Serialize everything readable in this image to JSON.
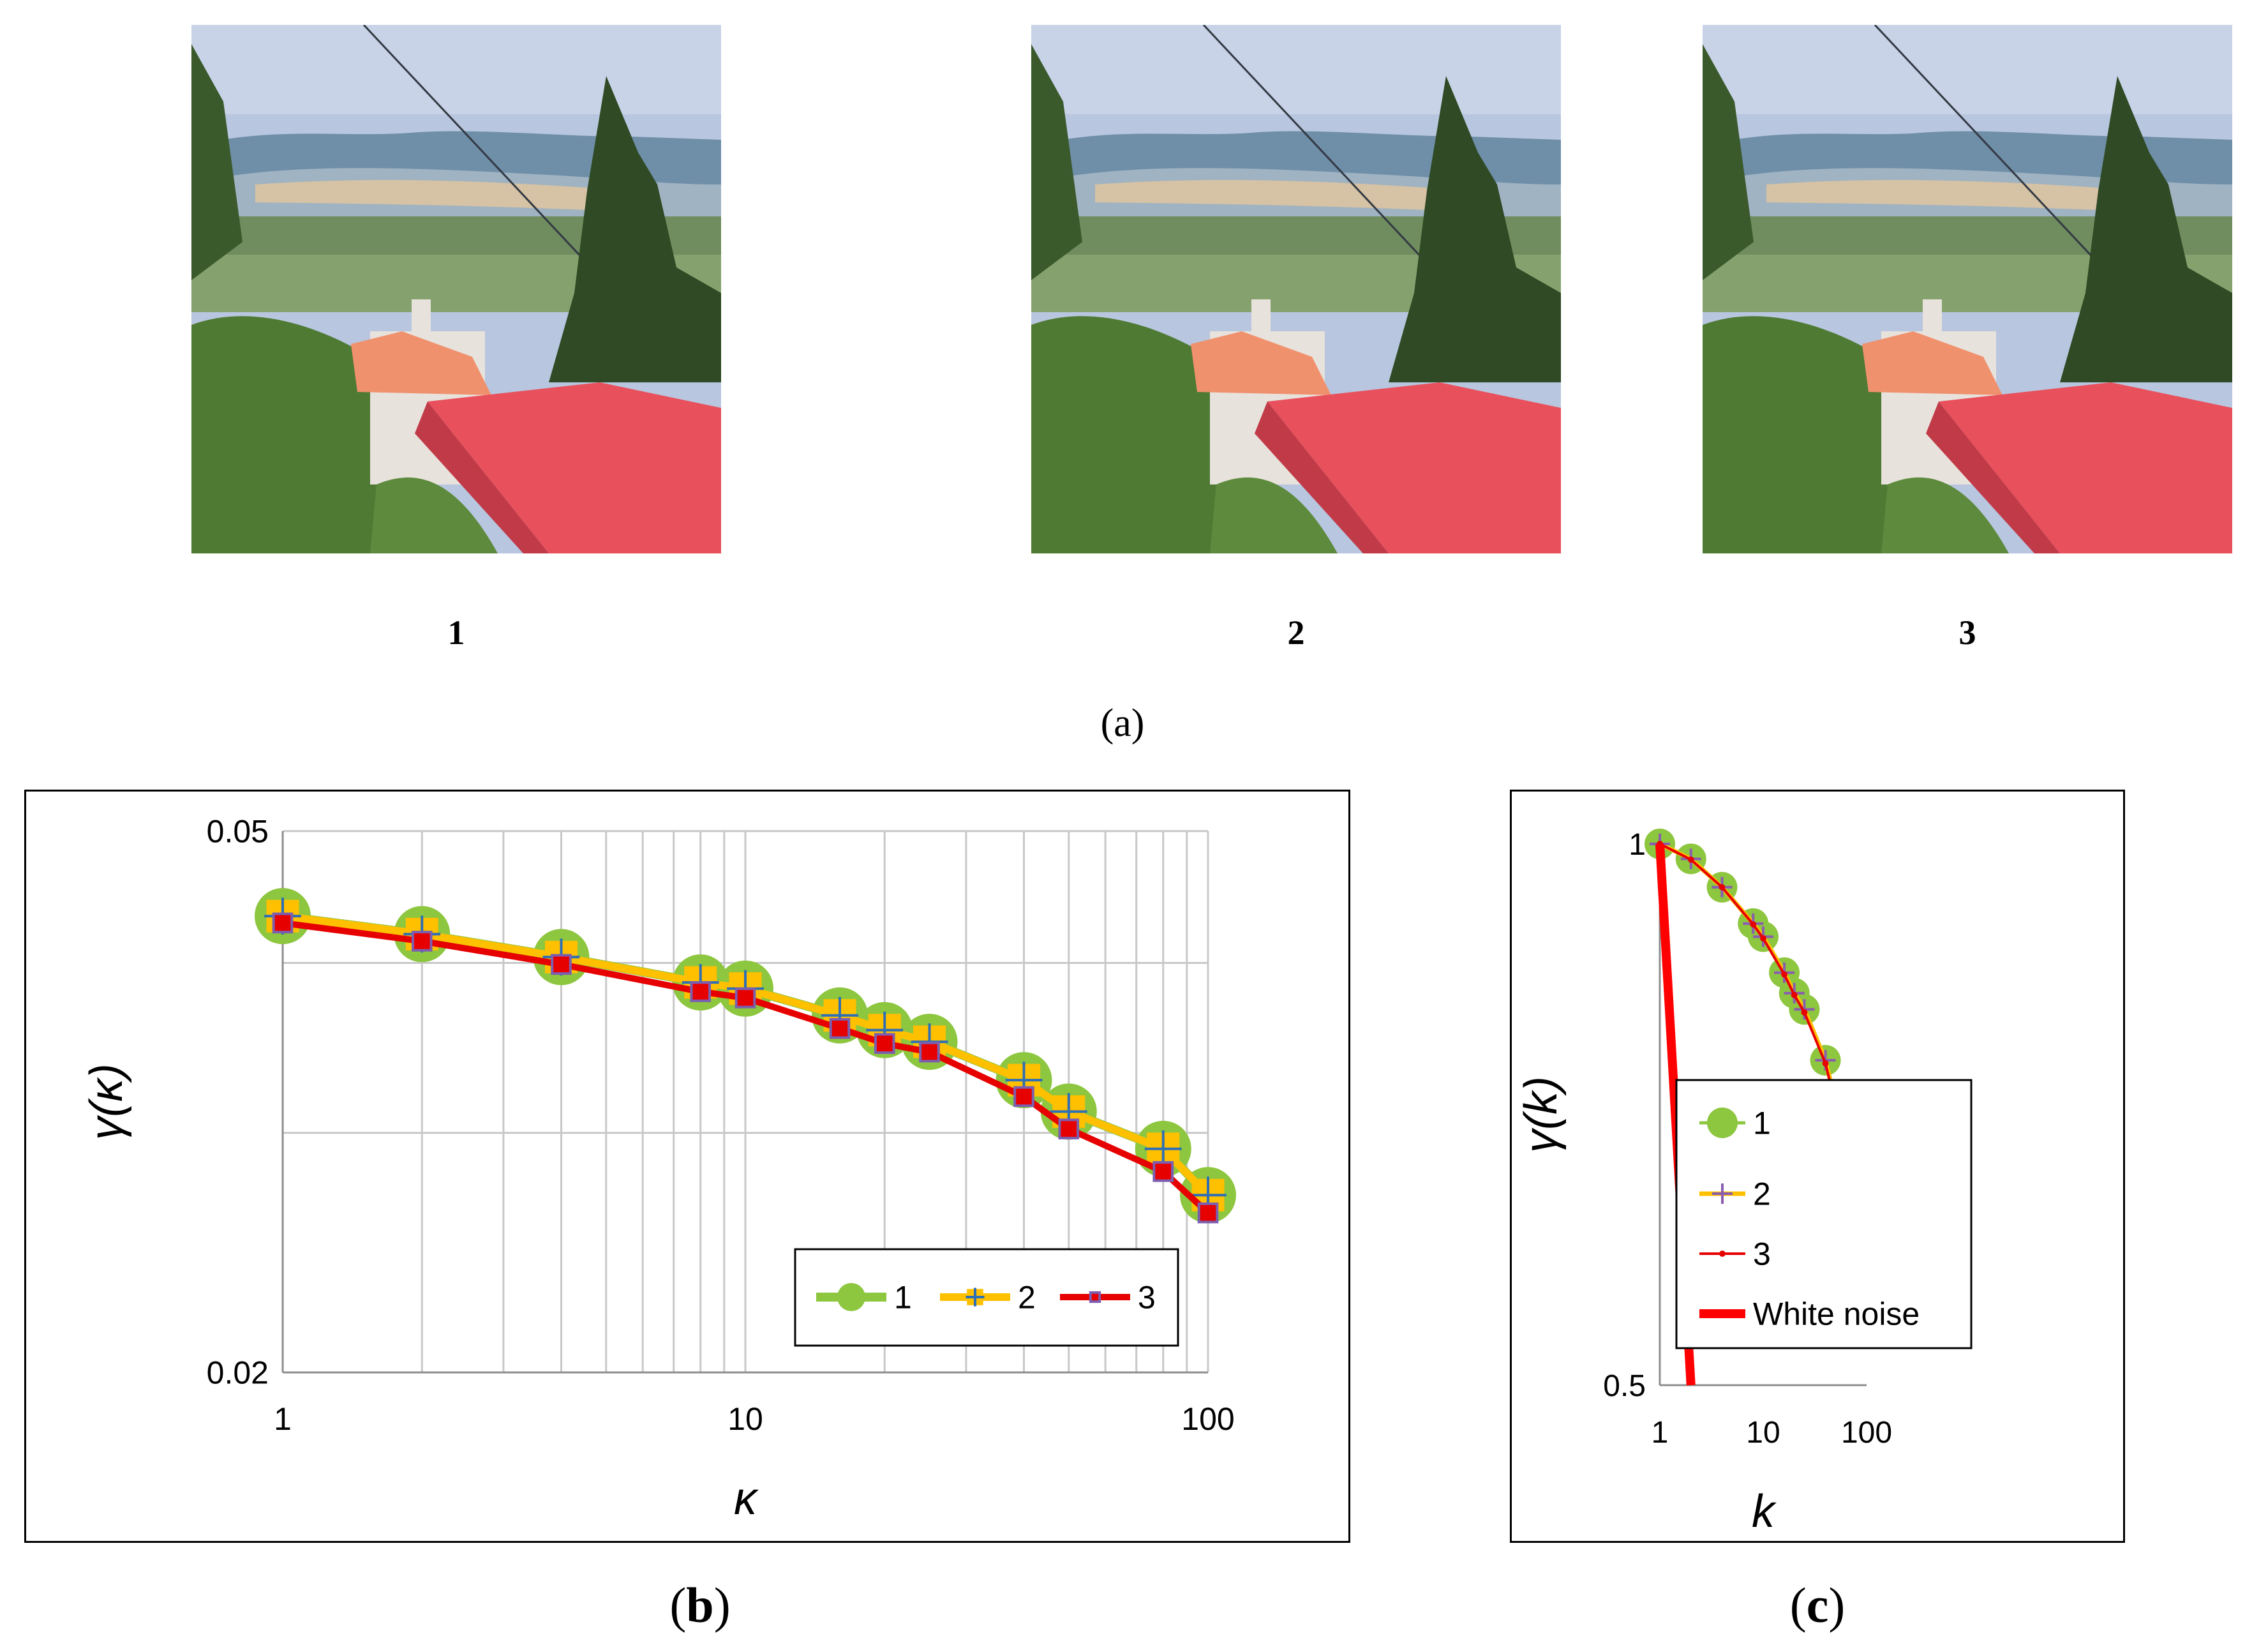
{
  "photos": [
    {
      "label": "1"
    },
    {
      "label": "2"
    },
    {
      "label": "3"
    }
  ],
  "captions": {
    "a": "a",
    "b": "b",
    "c": "c"
  },
  "chart_data": [
    {
      "type": "line",
      "xscale": "log",
      "yscale": "log",
      "xlim": [
        1,
        100
      ],
      "ylim": [
        0.02,
        0.05
      ],
      "xticks": [
        "1",
        "10",
        "100"
      ],
      "yticks": [
        "0.02",
        "0.05"
      ],
      "xlabel": "κ",
      "ylabel": "γ(κ)",
      "grid": true,
      "legend": "bottom-right",
      "x": [
        1,
        2,
        4,
        8,
        10,
        16,
        20,
        25,
        40,
        50,
        80,
        100
      ],
      "series": [
        {
          "name": "1",
          "color": "#8dc63f",
          "marker": "circle",
          "values": [
            0.0433,
            0.042,
            0.0404,
            0.0387,
            0.0383,
            0.0366,
            0.0357,
            0.035,
            0.0328,
            0.0311,
            0.0292,
            0.027
          ]
        },
        {
          "name": "2",
          "color": "#ffc000",
          "marker": "plus-square",
          "values": [
            0.0433,
            0.042,
            0.0404,
            0.0387,
            0.0383,
            0.0366,
            0.0357,
            0.035,
            0.0328,
            0.0311,
            0.0292,
            0.027
          ]
        },
        {
          "name": "3",
          "color": "#e60000",
          "marker": "square",
          "values": [
            0.0428,
            0.0415,
            0.0399,
            0.0381,
            0.0377,
            0.0358,
            0.0349,
            0.0344,
            0.0319,
            0.0302,
            0.0281,
            0.0262
          ]
        }
      ]
    },
    {
      "type": "line",
      "xscale": "log",
      "yscale": "log",
      "xlim": [
        1,
        100
      ],
      "ylim": [
        0.5,
        1
      ],
      "xticks": [
        "1",
        "10",
        "100"
      ],
      "yticks": [
        "0.5",
        "1"
      ],
      "xlabel": "k",
      "ylabel": "γ(k)",
      "grid": false,
      "legend": "bottom-left",
      "x": [
        1,
        2,
        4,
        8,
        10,
        16,
        20,
        25,
        40,
        50,
        80,
        100
      ],
      "series": [
        {
          "name": "1",
          "color": "#8dc63f",
          "marker": "circle",
          "values": [
            1.0,
            0.981,
            0.946,
            0.903,
            0.888,
            0.848,
            0.826,
            0.809,
            0.758,
            0.719,
            0.676,
            0.624
          ]
        },
        {
          "name": "2",
          "color": "#ffc000",
          "marker": "plus",
          "values": [
            1.0,
            0.981,
            0.946,
            0.903,
            0.888,
            0.848,
            0.826,
            0.809,
            0.758,
            0.719,
            0.676,
            0.624
          ]
        },
        {
          "name": "3",
          "color": "#e60000",
          "marker": "small-dot",
          "values": [
            1.0,
            0.98,
            0.946,
            0.902,
            0.886,
            0.846,
            0.824,
            0.806,
            0.755,
            0.716,
            0.67,
            0.615
          ]
        },
        {
          "name": "White noise",
          "color": "#ff0000",
          "marker": "none",
          "linewidth": "thick",
          "x": [
            1,
            2
          ],
          "values": [
            1.0,
            0.5
          ]
        }
      ]
    }
  ]
}
